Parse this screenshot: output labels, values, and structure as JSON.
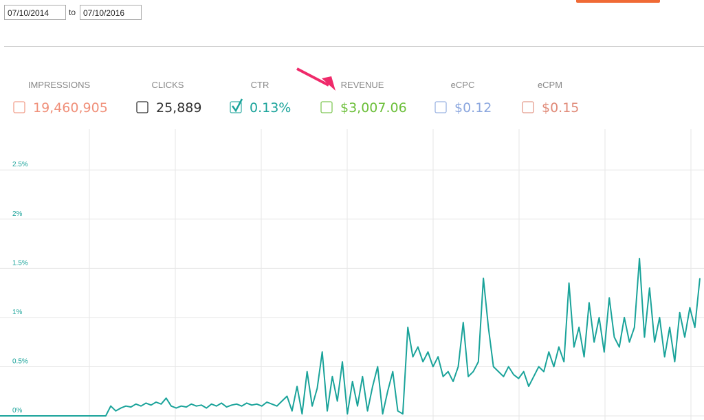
{
  "header": {
    "start_date": "07/10/2014",
    "separator": "to",
    "end_date": "07/10/2016"
  },
  "metrics": [
    {
      "label": "IMPRESSIONS",
      "value": "19,460,905",
      "color": "#f0907a",
      "checked": false
    },
    {
      "label": "CLICKS",
      "value": "25,889",
      "color": "#333333",
      "checked": false
    },
    {
      "label": "CTR",
      "value": "0.13%",
      "color": "#1aa39a",
      "checked": true
    },
    {
      "label": "REVENUE",
      "value": "$3,007.06",
      "color": "#6cbf3a",
      "checked": false
    },
    {
      "label": "eCPC",
      "value": "$0.12",
      "color": "#8aa6de",
      "checked": false
    },
    {
      "label": "eCPM",
      "value": "$0.15",
      "color": "#e08a78",
      "checked": false
    }
  ],
  "chart_data": {
    "type": "line",
    "color": "#1aa39a",
    "grid": true,
    "ylim": [
      0,
      2.9
    ],
    "yticks": [
      {
        "value": 0,
        "label": "0%"
      },
      {
        "value": 0.5,
        "label": "0.5%"
      },
      {
        "value": 1,
        "label": "1%"
      },
      {
        "value": 1.5,
        "label": "1.5%"
      },
      {
        "value": 2,
        "label": "2%"
      },
      {
        "value": 2.5,
        "label": "2.5%"
      }
    ],
    "values": [
      0,
      0,
      0,
      0,
      0,
      0,
      0,
      0,
      0,
      0,
      0,
      0,
      0,
      0,
      0,
      0,
      0,
      0,
      0,
      0,
      0,
      0,
      0.1,
      0.05,
      0.08,
      0.1,
      0.09,
      0.12,
      0.1,
      0.13,
      0.11,
      0.14,
      0.12,
      0.18,
      0.1,
      0.08,
      0.1,
      0.09,
      0.12,
      0.1,
      0.11,
      0.08,
      0.12,
      0.1,
      0.13,
      0.09,
      0.11,
      0.12,
      0.1,
      0.13,
      0.11,
      0.12,
      0.1,
      0.14,
      0.12,
      0.1,
      0.15,
      0.2,
      0.05,
      0.3,
      0.02,
      0.45,
      0.1,
      0.28,
      0.65,
      0.05,
      0.4,
      0.15,
      0.55,
      0.02,
      0.35,
      0.1,
      0.4,
      0.05,
      0.3,
      0.5,
      0.02,
      0.25,
      0.45,
      0.05,
      0.02,
      0.9,
      0.6,
      0.7,
      0.55,
      0.65,
      0.5,
      0.6,
      0.4,
      0.45,
      0.35,
      0.5,
      0.95,
      0.4,
      0.45,
      0.55,
      1.4,
      0.9,
      0.5,
      0.45,
      0.4,
      0.5,
      0.42,
      0.38,
      0.45,
      0.3,
      0.4,
      0.5,
      0.45,
      0.65,
      0.5,
      0.7,
      0.55,
      1.35,
      0.7,
      0.9,
      0.6,
      1.15,
      0.75,
      1.0,
      0.65,
      1.2,
      0.8,
      0.7,
      1.0,
      0.75,
      0.9,
      1.6,
      0.8,
      1.3,
      0.75,
      1.0,
      0.6,
      0.9,
      0.55,
      1.05,
      0.8,
      1.1,
      0.9,
      1.4
    ]
  }
}
